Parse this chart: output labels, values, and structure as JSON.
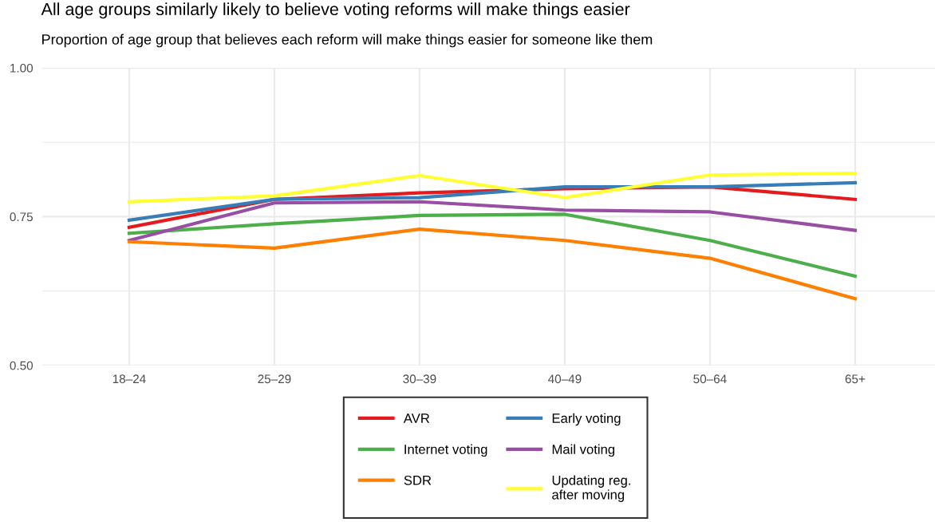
{
  "chart_data": {
    "type": "line",
    "title": "All age groups similarly likely to believe voting reforms will make things easier",
    "subtitle": "Proportion of age group that believes each reform will make things easier for someone like them",
    "categories": [
      "18–24",
      "25–29",
      "30–39",
      "40–49",
      "50–64",
      "65+"
    ],
    "series": [
      {
        "name": "AVR",
        "color": "#e41a1c",
        "values": [
          0.732,
          0.779,
          0.79,
          0.797,
          0.8,
          0.779
        ]
      },
      {
        "name": "Early voting",
        "color": "#377eb8",
        "values": [
          0.744,
          0.779,
          0.782,
          0.8,
          0.8,
          0.807
        ]
      },
      {
        "name": "Internet voting",
        "color": "#4daf4a",
        "values": [
          0.722,
          0.738,
          0.752,
          0.754,
          0.71,
          0.65
        ]
      },
      {
        "name": "Mail voting",
        "color": "#984ea3",
        "values": [
          0.71,
          0.773,
          0.775,
          0.761,
          0.758,
          0.727
        ]
      },
      {
        "name": "SDR",
        "color": "#ff7f00",
        "values": [
          0.708,
          0.697,
          0.729,
          0.71,
          0.68,
          0.612
        ]
      },
      {
        "name": "Updating reg.\nafter moving",
        "color": "#ffff33",
        "values": [
          0.775,
          0.785,
          0.819,
          0.782,
          0.82,
          0.823
        ]
      }
    ],
    "ylim": [
      0.5,
      1.0
    ],
    "yticks": [
      {
        "value": 0.5,
        "label": "0.50"
      },
      {
        "value": 0.625,
        "label": null
      },
      {
        "value": 0.75,
        "label": "0.75"
      },
      {
        "value": 0.875,
        "label": null
      },
      {
        "value": 1.0,
        "label": "1.00"
      }
    ],
    "grid": true,
    "legend": "bottom",
    "marker": "none",
    "line_style": "solid"
  }
}
